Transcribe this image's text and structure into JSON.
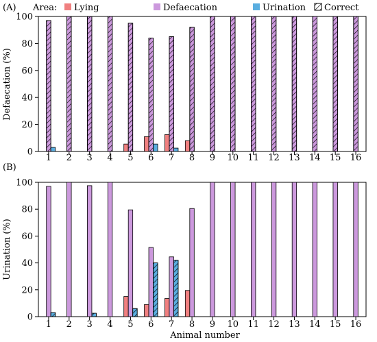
{
  "legend": {
    "title": "Area:",
    "items": [
      {
        "label": "Lying",
        "color": "#f08080",
        "hatch": false
      },
      {
        "label": "Defaecation",
        "color": "#cc99dd",
        "hatch": false
      },
      {
        "label": "Urination",
        "color": "#5aaee0",
        "hatch": false
      },
      {
        "label": "Correct",
        "color": "#ffffff",
        "hatch": true
      }
    ]
  },
  "colors": {
    "lying": "#f08080",
    "defaecation": "#cc99dd",
    "urination": "#5aaee0",
    "axis": "#000000"
  },
  "xlabel": "Animal number",
  "chart_data": [
    {
      "type": "bar",
      "panel_label": "(A)",
      "ylabel": "Defaecation (%)",
      "ylim": [
        0,
        100
      ],
      "yticks": [
        0,
        20,
        40,
        60,
        80,
        100
      ],
      "categories": [
        "1",
        "2",
        "3",
        "4",
        "5",
        "6",
        "7",
        "8",
        "9",
        "10",
        "11",
        "12",
        "13",
        "14",
        "15",
        "16"
      ],
      "correct_series": "Defaecation",
      "series": [
        {
          "name": "Lying",
          "values": [
            0,
            0,
            0,
            0,
            5.5,
            11,
            12.5,
            8,
            0,
            0,
            0,
            0,
            0,
            0,
            0,
            0
          ]
        },
        {
          "name": "Defaecation",
          "values": [
            97,
            100,
            100,
            100,
            95,
            84,
            85,
            92,
            100,
            100,
            100,
            100,
            100,
            100,
            100,
            100
          ]
        },
        {
          "name": "Urination",
          "values": [
            3,
            0,
            0,
            0,
            0,
            5.5,
            2.5,
            0,
            0,
            0,
            0,
            0,
            0,
            0,
            0,
            0
          ]
        }
      ]
    },
    {
      "type": "bar",
      "panel_label": "(B)",
      "ylabel": "Urination (%)",
      "ylim": [
        0,
        100
      ],
      "yticks": [
        0,
        20,
        40,
        60,
        80,
        100
      ],
      "categories": [
        "1",
        "2",
        "3",
        "4",
        "5",
        "6",
        "7",
        "8",
        "9",
        "10",
        "11",
        "12",
        "13",
        "14",
        "15",
        "16"
      ],
      "correct_series": "Urination",
      "series": [
        {
          "name": "Lying",
          "values": [
            0,
            0,
            0,
            0,
            15,
            9,
            13.5,
            19.5,
            0,
            0,
            0,
            0,
            0,
            0,
            0,
            0
          ]
        },
        {
          "name": "Defaecation",
          "values": [
            97,
            100,
            97.5,
            100,
            79.5,
            51.5,
            44.5,
            80.5,
            100,
            100,
            100,
            100,
            100,
            100,
            100,
            100
          ]
        },
        {
          "name": "Urination",
          "values": [
            3,
            0,
            2.5,
            0,
            6,
            40,
            42,
            0,
            0,
            0,
            0,
            0,
            0,
            0,
            0,
            0
          ]
        }
      ]
    }
  ]
}
